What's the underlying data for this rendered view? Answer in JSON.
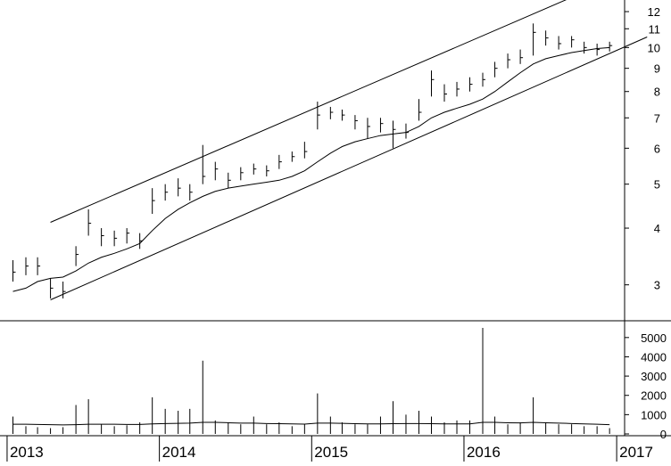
{
  "chart_data": [
    {
      "type": "ohlc",
      "yscale": "log",
      "ylim": [
        2.5,
        12.5
      ],
      "yticks": [
        3,
        4,
        5,
        6,
        7,
        8,
        9,
        10,
        11,
        12
      ],
      "grid": false,
      "series": [
        {
          "type": "ohlc",
          "x": [
            "2013-01",
            "2013-02",
            "2013-03",
            "2013-04",
            "2013-05",
            "2013-06",
            "2013-07",
            "2013-08",
            "2013-09",
            "2013-10",
            "2013-11",
            "2013-12",
            "2014-01",
            "2014-02",
            "2014-03",
            "2014-04",
            "2014-05",
            "2014-06",
            "2014-07",
            "2014-08",
            "2014-09",
            "2014-10",
            "2014-11",
            "2014-12",
            "2015-01",
            "2015-02",
            "2015-03",
            "2015-04",
            "2015-05",
            "2015-06",
            "2015-07",
            "2015-08",
            "2015-09",
            "2015-10",
            "2015-11",
            "2015-12",
            "2016-01",
            "2016-02",
            "2016-03",
            "2016-04",
            "2016-05",
            "2016-06",
            "2016-07",
            "2016-08",
            "2016-09",
            "2016-10",
            "2016-11",
            "2016-12"
          ],
          "close": [
            3.2,
            3.3,
            3.3,
            2.95,
            2.9,
            3.5,
            4.1,
            3.85,
            3.8,
            3.9,
            3.75,
            4.6,
            4.8,
            4.9,
            4.8,
            5.2,
            5.4,
            5.1,
            5.3,
            5.4,
            5.35,
            5.6,
            5.75,
            5.9,
            7.1,
            7.2,
            7.1,
            6.9,
            6.7,
            6.8,
            6.6,
            6.5,
            7.2,
            8.5,
            7.9,
            8.1,
            8.3,
            8.5,
            9.0,
            9.4,
            9.5,
            10.8,
            10.5,
            10.2,
            10.4,
            10.0,
            9.9,
            10.1
          ],
          "high": [
            3.4,
            3.45,
            3.45,
            3.1,
            3.05,
            3.65,
            4.4,
            4.0,
            3.95,
            4.0,
            3.9,
            4.9,
            5.0,
            5.15,
            5.0,
            6.1,
            5.6,
            5.3,
            5.45,
            5.55,
            5.5,
            5.8,
            5.9,
            6.2,
            7.6,
            7.4,
            7.3,
            7.1,
            7.0,
            7.0,
            6.9,
            6.8,
            7.7,
            8.9,
            8.3,
            8.4,
            8.6,
            8.8,
            9.3,
            9.7,
            9.9,
            11.3,
            10.9,
            10.6,
            10.6,
            10.3,
            10.2,
            10.3
          ],
          "low": [
            3.05,
            3.15,
            3.15,
            2.8,
            2.8,
            3.3,
            3.85,
            3.65,
            3.65,
            3.7,
            3.6,
            4.3,
            4.6,
            4.7,
            4.6,
            5.0,
            5.1,
            4.9,
            5.1,
            5.25,
            5.2,
            5.4,
            5.6,
            5.7,
            6.6,
            6.95,
            6.9,
            6.6,
            6.3,
            6.5,
            6.0,
            6.3,
            6.9,
            7.8,
            7.6,
            7.8,
            8.0,
            8.2,
            8.6,
            9.0,
            9.2,
            9.6,
            10.1,
            9.9,
            10.0,
            9.7,
            9.6,
            9.8
          ]
        },
        {
          "type": "line",
          "values": [
            2.9,
            2.95,
            3.05,
            3.1,
            3.12,
            3.22,
            3.35,
            3.45,
            3.52,
            3.6,
            3.7,
            3.95,
            4.2,
            4.4,
            4.55,
            4.7,
            4.82,
            4.9,
            4.95,
            5.0,
            5.05,
            5.1,
            5.2,
            5.35,
            5.6,
            5.85,
            6.05,
            6.2,
            6.3,
            6.4,
            6.45,
            6.5,
            6.7,
            7.0,
            7.2,
            7.35,
            7.5,
            7.7,
            8.0,
            8.4,
            8.8,
            9.2,
            9.45,
            9.6,
            9.75,
            9.85,
            9.95,
            10.0
          ]
        }
      ],
      "channel_lines": [
        {
          "from": [
            "2013-04",
            2.78
          ],
          "to": [
            "2017-03",
            10.55
          ]
        },
        {
          "from": [
            "2013-04",
            4.12
          ],
          "to": [
            "2016-09",
            12.9
          ]
        }
      ]
    },
    {
      "type": "bar",
      "ylim": [
        0,
        5500
      ],
      "yticks": [
        0,
        1000,
        2000,
        3000,
        4000,
        5000
      ],
      "x": [
        "2013-01",
        "2013-02",
        "2013-03",
        "2013-04",
        "2013-05",
        "2013-06",
        "2013-07",
        "2013-08",
        "2013-09",
        "2013-10",
        "2013-11",
        "2013-12",
        "2014-01",
        "2014-02",
        "2014-03",
        "2014-04",
        "2014-05",
        "2014-06",
        "2014-07",
        "2014-08",
        "2014-09",
        "2014-10",
        "2014-11",
        "2014-12",
        "2015-01",
        "2015-02",
        "2015-03",
        "2015-04",
        "2015-05",
        "2015-06",
        "2015-07",
        "2015-08",
        "2015-09",
        "2015-10",
        "2015-11",
        "2015-12",
        "2016-01",
        "2016-02",
        "2016-03",
        "2016-04",
        "2016-05",
        "2016-06",
        "2016-07",
        "2016-08",
        "2016-09",
        "2016-10",
        "2016-11",
        "2016-12"
      ],
      "series": [
        {
          "type": "bar",
          "values": [
            900,
            400,
            350,
            300,
            350,
            1500,
            1800,
            500,
            400,
            450,
            600,
            1900,
            1300,
            1200,
            1300,
            3800,
            700,
            600,
            500,
            900,
            500,
            600,
            400,
            500,
            2100,
            900,
            600,
            500,
            500,
            900,
            1700,
            1000,
            1200,
            900,
            600,
            700,
            700,
            5500,
            900,
            500,
            600,
            1900,
            600,
            500,
            500,
            400,
            400,
            300
          ]
        },
        {
          "type": "line",
          "values": [
            500,
            500,
            490,
            480,
            470,
            480,
            500,
            500,
            500,
            490,
            490,
            520,
            540,
            550,
            560,
            600,
            600,
            580,
            560,
            560,
            540,
            530,
            520,
            510,
            560,
            560,
            550,
            530,
            520,
            520,
            530,
            540,
            540,
            530,
            520,
            520,
            520,
            600,
            600,
            580,
            570,
            600,
            580,
            560,
            540,
            520,
            500,
            480
          ]
        }
      ]
    }
  ],
  "x_axis": {
    "labels": [
      "2013",
      "2014",
      "2015",
      "2016",
      "2017"
    ]
  },
  "colors": {
    "line": "#000000",
    "background": "#ffffff"
  }
}
